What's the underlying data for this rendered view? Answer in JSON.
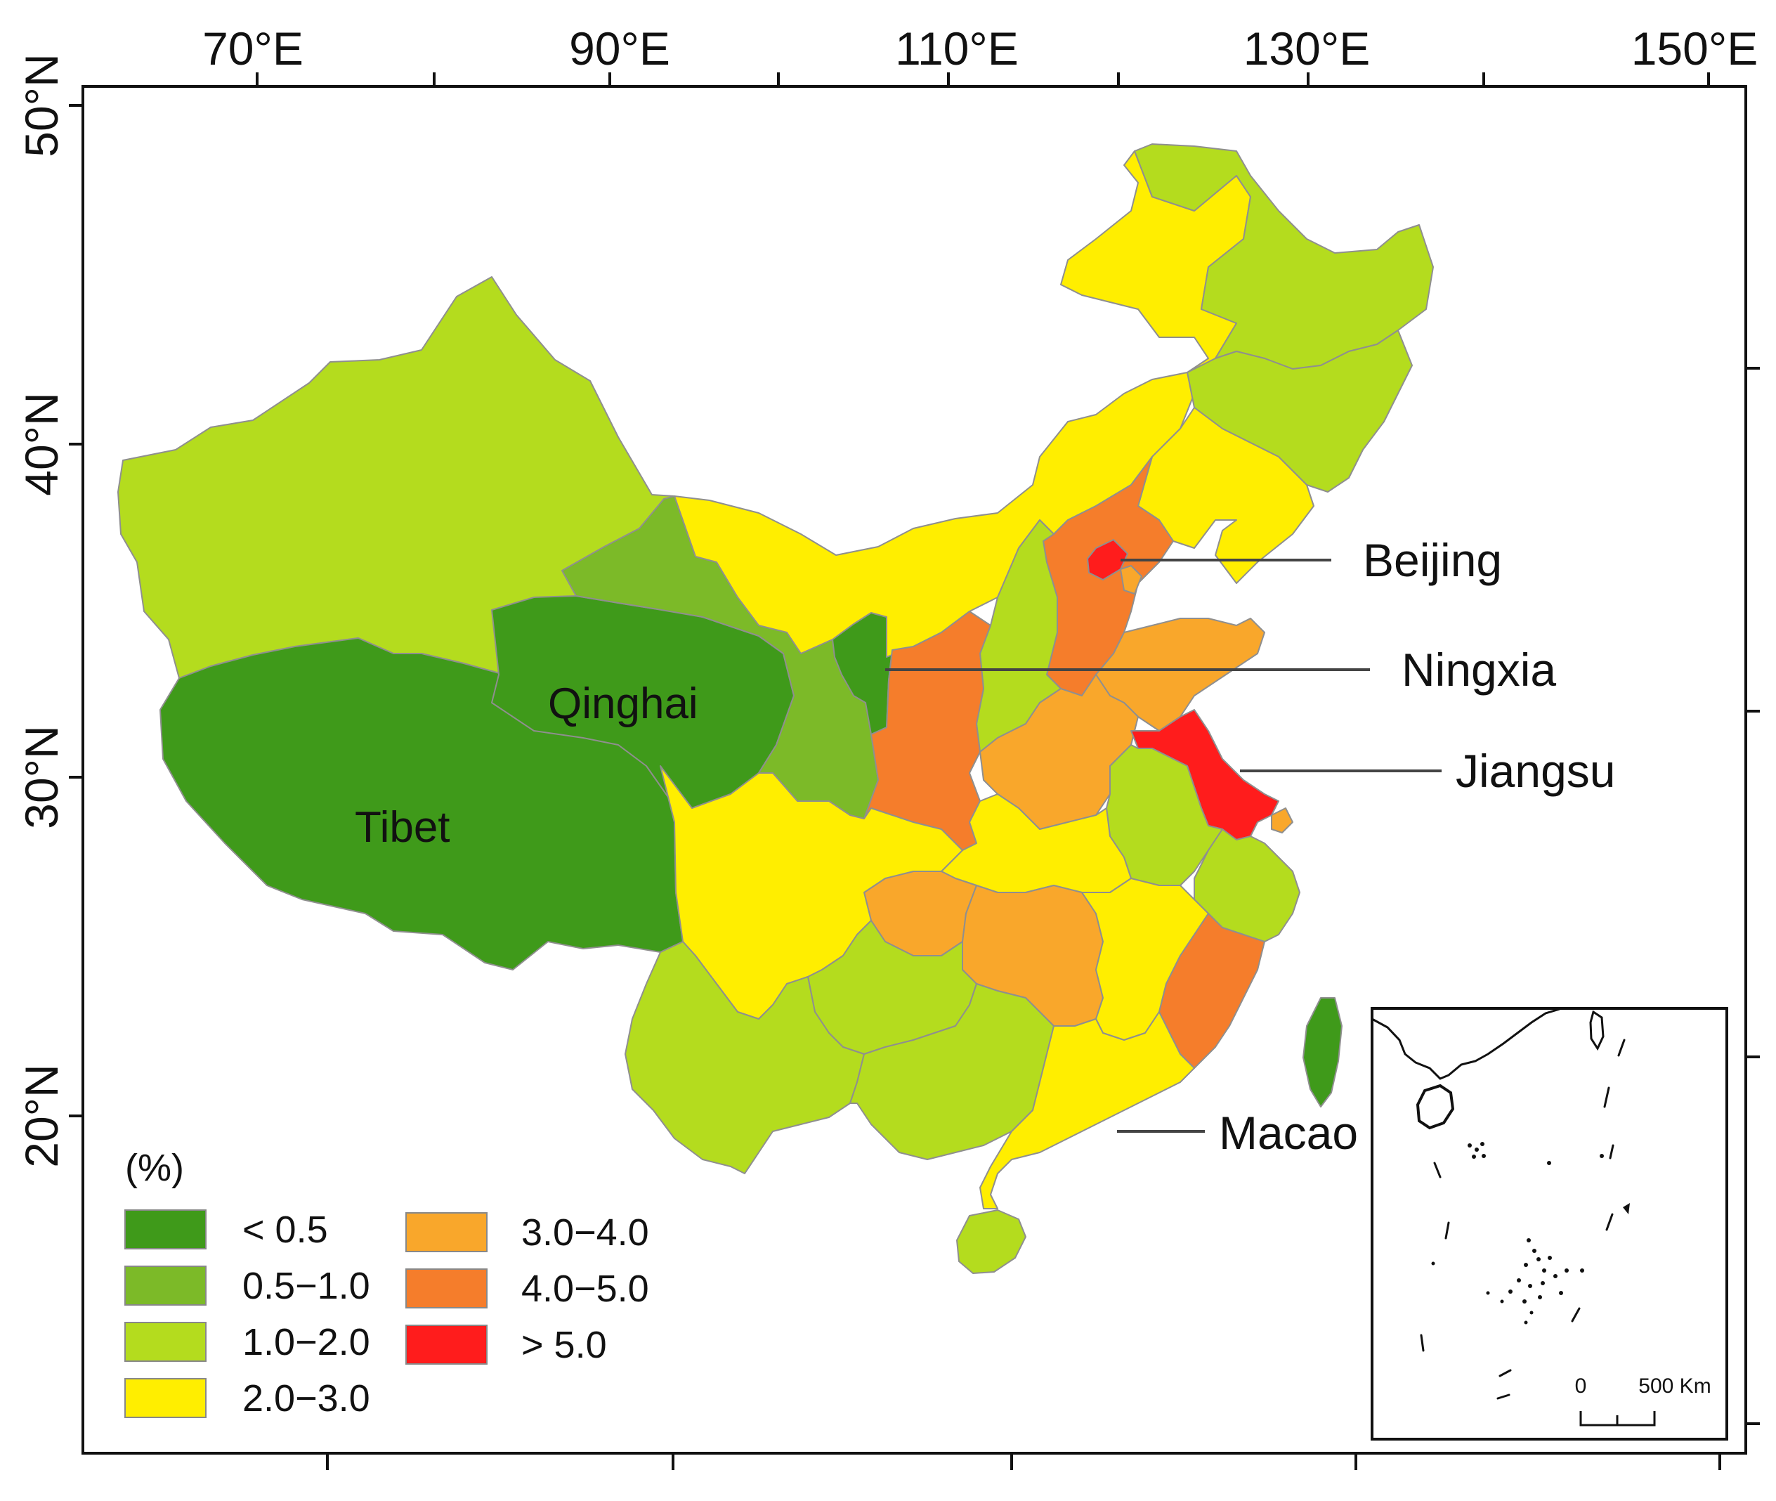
{
  "axes": {
    "longitude_labels": [
      "70°E",
      "90°E",
      "110°E",
      "130°E",
      "150°E"
    ],
    "latitude_labels": [
      "50°N",
      "40°N",
      "30°N",
      "20°N"
    ]
  },
  "legend": {
    "unit": "(%)",
    "items": [
      {
        "label": "< 0.5",
        "color": "#3f9a1a"
      },
      {
        "label": "0.5−1.0",
        "color": "#7cba28"
      },
      {
        "label": "1.0−2.0",
        "color": "#b4dc1e"
      },
      {
        "label": "2.0−3.0",
        "color": "#ffee00"
      },
      {
        "label": "3.0−4.0",
        "color": "#f9a72b"
      },
      {
        "label": "4.0−5.0",
        "color": "#f57d2b"
      },
      {
        "label": "> 5.0",
        "color": "#ff1c1c"
      }
    ]
  },
  "region_labels": {
    "qinghai": "Qinghai",
    "tibet": "Tibet"
  },
  "callouts": {
    "beijing": "Beijing",
    "ningxia": "Ningxia",
    "jiangsu": "Jiangsu",
    "macao": "Macao"
  },
  "inset": {
    "scale_zero": "0",
    "scale_distance": "500 Km"
  }
}
